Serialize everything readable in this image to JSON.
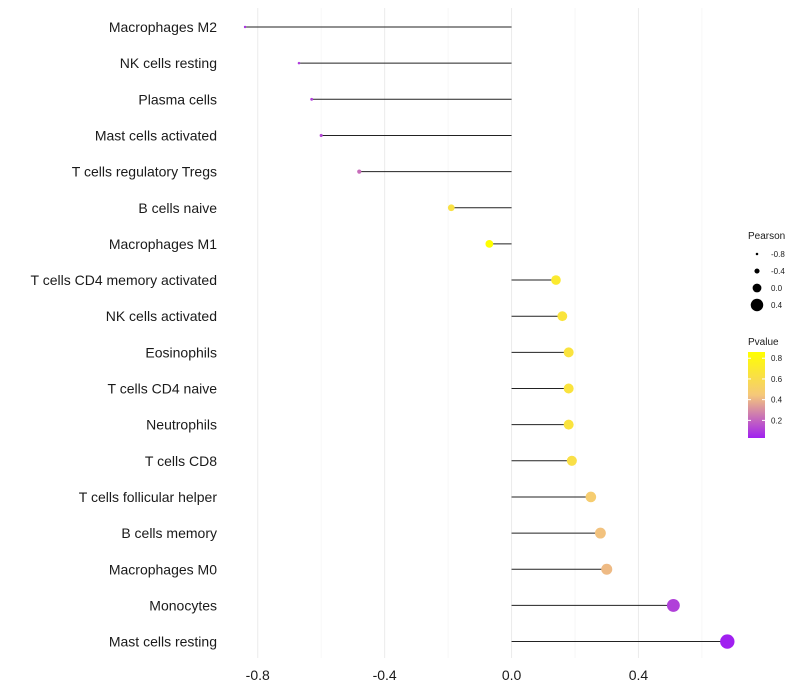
{
  "chart_data": {
    "type": "lollipop",
    "categories": [
      "Macrophages M2",
      "NK cells resting",
      "Plasma cells",
      "Mast cells activated",
      "T cells regulatory  Tregs",
      "B cells naive",
      "Macrophages M1",
      "T cells CD4 memory activated",
      "NK cells activated",
      "Eosinophils",
      "T cells CD4 naive",
      "Neutrophils",
      "T cells CD8",
      "T cells follicular helper",
      "B cells memory",
      "Macrophages M0",
      "Monocytes",
      "Mast cells resting"
    ],
    "pearson": [
      -0.84,
      -0.67,
      -0.63,
      -0.6,
      -0.48,
      -0.19,
      -0.07,
      0.14,
      0.16,
      0.18,
      0.18,
      0.18,
      0.19,
      0.25,
      0.28,
      0.3,
      0.51,
      0.68
    ],
    "pvalue": [
      0.08,
      0.1,
      0.11,
      0.13,
      0.22,
      0.63,
      0.86,
      0.7,
      0.66,
      0.65,
      0.65,
      0.65,
      0.62,
      0.48,
      0.43,
      0.41,
      0.11,
      0.03
    ],
    "xlim": [
      -0.9,
      0.72
    ],
    "xticks": [
      -0.8,
      -0.4,
      0.0,
      0.4
    ],
    "xtick_labels": [
      "-0.8",
      "-0.4",
      "0.0",
      "0.4"
    ],
    "grid": true,
    "size_legend": {
      "title": "Pearson",
      "values": [
        -0.8,
        -0.4,
        0.0,
        0.4
      ],
      "labels": [
        "-0.8",
        "-0.4",
        "0.0",
        "0.4"
      ]
    },
    "color_legend": {
      "title": "Pvalue",
      "ticks": [
        0.8,
        0.6,
        0.4,
        0.2
      ],
      "labels": [
        "0.8",
        "0.6",
        "0.4",
        "0.2"
      ],
      "range": [
        0.03,
        0.86
      ],
      "colors": [
        "#a020f0",
        "#f5c87a",
        "#ffff00"
      ]
    }
  }
}
